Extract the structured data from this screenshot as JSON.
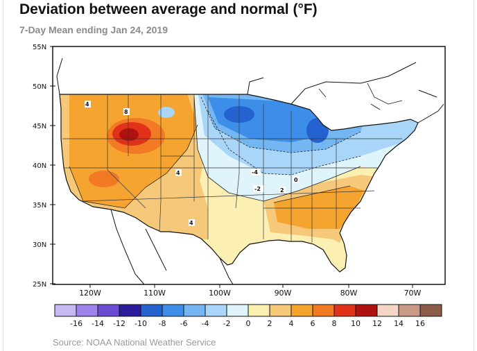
{
  "title": "Deviation between average and normal (°F)",
  "subtitle": "7-Day Mean ending Jan 24, 2019",
  "source": "Source: NOAA National Weather Service",
  "map": {
    "latitude_labels": [
      "55N",
      "50N",
      "45N",
      "40N",
      "35N",
      "30N",
      "25N"
    ],
    "longitude_labels": [
      "120W",
      "110W",
      "100W",
      "90W",
      "80W",
      "70W"
    ],
    "contour_labels": [
      "4",
      "8",
      "4",
      "4",
      "-4",
      "-2",
      "2",
      "0"
    ]
  },
  "legend": {
    "labels": [
      "-16",
      "-14",
      "-12",
      "-10",
      "-8",
      "-6",
      "-4",
      "-2",
      "0",
      "2",
      "4",
      "6",
      "8",
      "10",
      "12",
      "14",
      "16"
    ],
    "colors": [
      "#c8b6f5",
      "#9e84ea",
      "#6a4bd2",
      "#2b1a9a",
      "#2463cf",
      "#3d8ee8",
      "#73b6f2",
      "#a9d6f8",
      "#dff4fb",
      "#fbf0b2",
      "#f6c97a",
      "#f6a430",
      "#f27a24",
      "#e03218",
      "#b01010",
      "#f3d6c4",
      "#c99a86",
      "#8e5a48"
    ]
  }
}
